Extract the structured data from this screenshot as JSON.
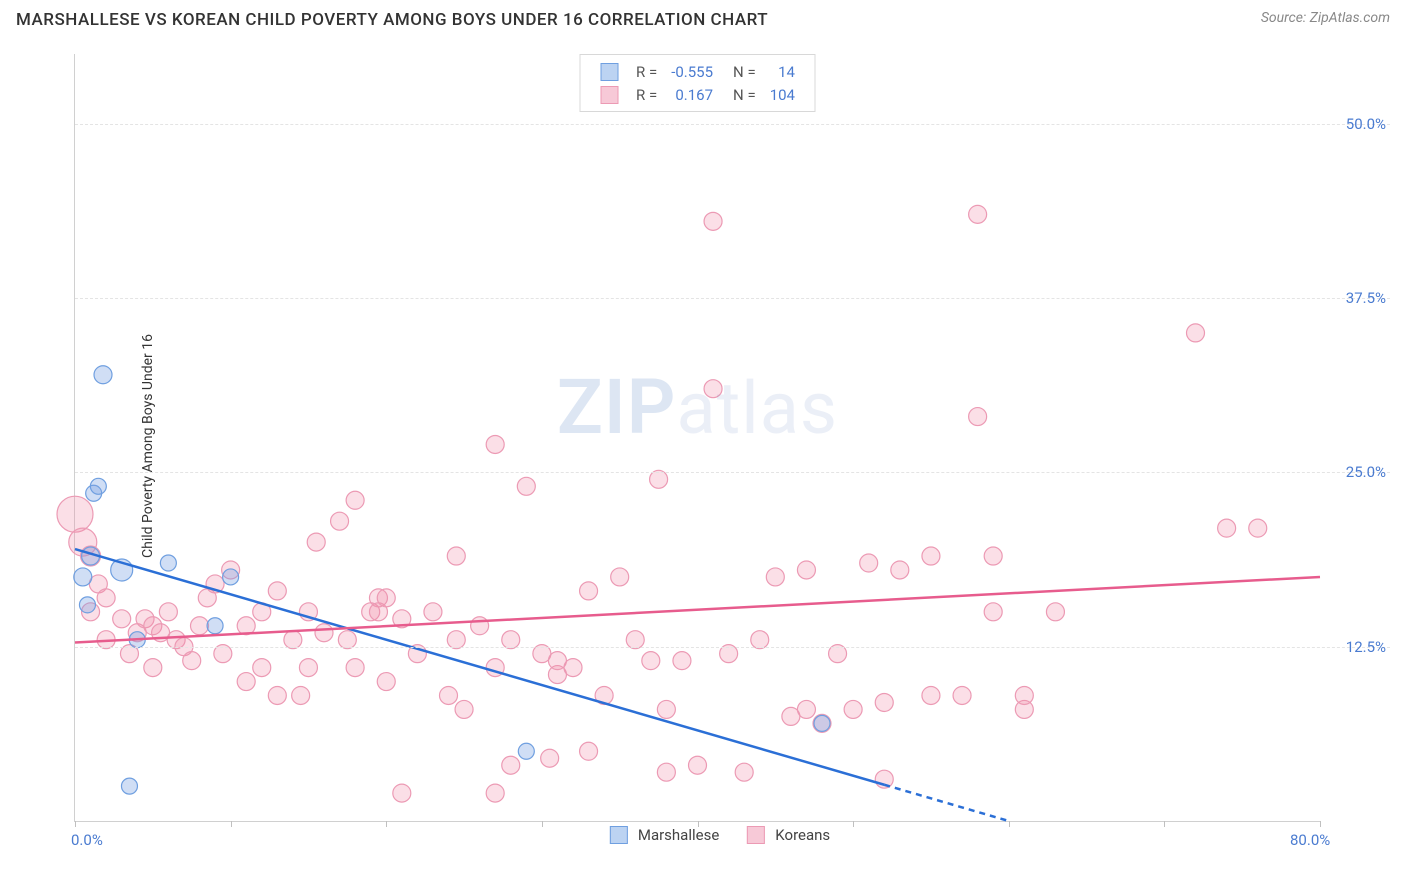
{
  "title": "MARSHALLESE VS KOREAN CHILD POVERTY AMONG BOYS UNDER 16 CORRELATION CHART",
  "source_label": "Source:",
  "source_name": "ZipAtlas.com",
  "ylabel": "Child Poverty Among Boys Under 16",
  "watermark_a": "ZIP",
  "watermark_b": "atlas",
  "chart": {
    "type": "scatter",
    "background_color": "#ffffff",
    "grid_color": "#e4e4e4",
    "axis_color": "#d0d0d0",
    "tick_color": "#c0c0c0",
    "axis_label_color": "#4a7bd0",
    "xlim": [
      0,
      80
    ],
    "ylim": [
      0,
      55
    ],
    "x_tick_positions": [
      0,
      10,
      20,
      30,
      40,
      50,
      60,
      70,
      80
    ],
    "x_tick_labels": {
      "0": "0.0%",
      "80": "80.0%"
    },
    "y_gridlines": [
      12.5,
      25,
      37.5,
      50
    ],
    "y_tick_labels": {
      "12.5": "12.5%",
      "25": "25.0%",
      "37.5": "37.5%",
      "50": "50.0%"
    },
    "series": [
      {
        "name": "Marshallese",
        "label": "Marshallese",
        "fill": "rgba(120,160,225,0.35)",
        "stroke": "#6f9fe0",
        "swatch_fill": "#bcd3f2",
        "swatch_border": "#6f9fe0",
        "r_value": "-0.555",
        "n_value": "14",
        "trend": {
          "x1": 0,
          "y1": 19.5,
          "x2": 60,
          "y2": 0,
          "dash_after_x": 52,
          "color": "#2b6fd6",
          "width": 2.5
        },
        "points": [
          {
            "x": 0.5,
            "y": 17.5,
            "r": 9
          },
          {
            "x": 1.0,
            "y": 19,
            "r": 9
          },
          {
            "x": 1.2,
            "y": 23.5,
            "r": 8
          },
          {
            "x": 1.5,
            "y": 24,
            "r": 8
          },
          {
            "x": 1.8,
            "y": 32,
            "r": 9
          },
          {
            "x": 3,
            "y": 18,
            "r": 11
          },
          {
            "x": 3.5,
            "y": 2.5,
            "r": 8
          },
          {
            "x": 4,
            "y": 13,
            "r": 8
          },
          {
            "x": 6,
            "y": 18.5,
            "r": 8
          },
          {
            "x": 9,
            "y": 14,
            "r": 8
          },
          {
            "x": 10,
            "y": 17.5,
            "r": 8
          },
          {
            "x": 29,
            "y": 5,
            "r": 8
          },
          {
            "x": 0.8,
            "y": 15.5,
            "r": 8
          },
          {
            "x": 48,
            "y": 7,
            "r": 8
          }
        ]
      },
      {
        "name": "Koreans",
        "label": "Koreans",
        "fill": "rgba(240,140,170,0.28)",
        "stroke": "#ec9ab4",
        "swatch_fill": "#f7c9d7",
        "swatch_border": "#ec9ab4",
        "r_value": "0.167",
        "n_value": "104",
        "trend": {
          "x1": 0,
          "y1": 12.8,
          "x2": 80,
          "y2": 17.5,
          "color": "#e75c8d",
          "width": 2.5
        },
        "points": [
          {
            "x": 0,
            "y": 22,
            "r": 18
          },
          {
            "x": 0.5,
            "y": 20,
            "r": 14
          },
          {
            "x": 1,
            "y": 19,
            "r": 10
          },
          {
            "x": 1,
            "y": 15,
            "r": 9
          },
          {
            "x": 1.5,
            "y": 17,
            "r": 9
          },
          {
            "x": 2,
            "y": 13,
            "r": 9
          },
          {
            "x": 2,
            "y": 16,
            "r": 9
          },
          {
            "x": 3,
            "y": 14.5,
            "r": 9
          },
          {
            "x": 3.5,
            "y": 12,
            "r": 9
          },
          {
            "x": 4,
            "y": 13.5,
            "r": 9
          },
          {
            "x": 4.5,
            "y": 14.5,
            "r": 9
          },
          {
            "x": 5,
            "y": 11,
            "r": 9
          },
          {
            "x": 5,
            "y": 14,
            "r": 9
          },
          {
            "x": 5.5,
            "y": 13.5,
            "r": 9
          },
          {
            "x": 6,
            "y": 15,
            "r": 9
          },
          {
            "x": 6.5,
            "y": 13,
            "r": 9
          },
          {
            "x": 7,
            "y": 12.5,
            "r": 9
          },
          {
            "x": 7.5,
            "y": 11.5,
            "r": 9
          },
          {
            "x": 8,
            "y": 14,
            "r": 9
          },
          {
            "x": 8.5,
            "y": 16,
            "r": 9
          },
          {
            "x": 9,
            "y": 17,
            "r": 9
          },
          {
            "x": 9.5,
            "y": 12,
            "r": 9
          },
          {
            "x": 10,
            "y": 18,
            "r": 9
          },
          {
            "x": 11,
            "y": 14,
            "r": 9
          },
          {
            "x": 11,
            "y": 10,
            "r": 9
          },
          {
            "x": 12,
            "y": 11,
            "r": 9
          },
          {
            "x": 12,
            "y": 15,
            "r": 9
          },
          {
            "x": 13,
            "y": 9,
            "r": 9
          },
          {
            "x": 13,
            "y": 16.5,
            "r": 9
          },
          {
            "x": 14,
            "y": 13,
            "r": 9
          },
          {
            "x": 14.5,
            "y": 9,
            "r": 9
          },
          {
            "x": 15,
            "y": 11,
            "r": 9
          },
          {
            "x": 15,
            "y": 15,
            "r": 9
          },
          {
            "x": 15.5,
            "y": 20,
            "r": 9
          },
          {
            "x": 16,
            "y": 13.5,
            "r": 9
          },
          {
            "x": 17,
            "y": 21.5,
            "r": 9
          },
          {
            "x": 17.5,
            "y": 13,
            "r": 9
          },
          {
            "x": 18,
            "y": 11,
            "r": 9
          },
          {
            "x": 18,
            "y": 23,
            "r": 9
          },
          {
            "x": 19,
            "y": 15,
            "r": 9
          },
          {
            "x": 19.5,
            "y": 16,
            "r": 9
          },
          {
            "x": 19.5,
            "y": 15,
            "r": 9
          },
          {
            "x": 20,
            "y": 10,
            "r": 9
          },
          {
            "x": 20,
            "y": 16,
            "r": 9
          },
          {
            "x": 21,
            "y": 14.5,
            "r": 9
          },
          {
            "x": 21,
            "y": 2,
            "r": 9
          },
          {
            "x": 22,
            "y": 12,
            "r": 9
          },
          {
            "x": 23,
            "y": 15,
            "r": 9
          },
          {
            "x": 24,
            "y": 9,
            "r": 9
          },
          {
            "x": 24.5,
            "y": 13,
            "r": 9
          },
          {
            "x": 24.5,
            "y": 19,
            "r": 9
          },
          {
            "x": 25,
            "y": 8,
            "r": 9
          },
          {
            "x": 26,
            "y": 14,
            "r": 9
          },
          {
            "x": 27,
            "y": 11,
            "r": 9
          },
          {
            "x": 27,
            "y": 2,
            "r": 9
          },
          {
            "x": 27,
            "y": 27,
            "r": 9
          },
          {
            "x": 28,
            "y": 4,
            "r": 9
          },
          {
            "x": 28,
            "y": 13,
            "r": 9
          },
          {
            "x": 29,
            "y": 24,
            "r": 9
          },
          {
            "x": 30,
            "y": 12,
            "r": 9
          },
          {
            "x": 30.5,
            "y": 4.5,
            "r": 9
          },
          {
            "x": 31,
            "y": 10.5,
            "r": 9
          },
          {
            "x": 31,
            "y": 11.5,
            "r": 9
          },
          {
            "x": 32,
            "y": 11,
            "r": 9
          },
          {
            "x": 33,
            "y": 16.5,
            "r": 9
          },
          {
            "x": 33,
            "y": 5,
            "r": 9
          },
          {
            "x": 34,
            "y": 9,
            "r": 9
          },
          {
            "x": 35,
            "y": 17.5,
            "r": 9
          },
          {
            "x": 36,
            "y": 13,
            "r": 9
          },
          {
            "x": 37,
            "y": 11.5,
            "r": 9
          },
          {
            "x": 37.5,
            "y": 24.5,
            "r": 9
          },
          {
            "x": 38,
            "y": 8,
            "r": 9
          },
          {
            "x": 38,
            "y": 3.5,
            "r": 9
          },
          {
            "x": 39,
            "y": 11.5,
            "r": 9
          },
          {
            "x": 40,
            "y": 4,
            "r": 9
          },
          {
            "x": 41,
            "y": 43,
            "r": 9
          },
          {
            "x": 41,
            "y": 31,
            "r": 9
          },
          {
            "x": 42,
            "y": 12,
            "r": 9
          },
          {
            "x": 43,
            "y": 3.5,
            "r": 9
          },
          {
            "x": 44,
            "y": 13,
            "r": 9
          },
          {
            "x": 45,
            "y": 17.5,
            "r": 9
          },
          {
            "x": 46,
            "y": 7.5,
            "r": 9
          },
          {
            "x": 47,
            "y": 18,
            "r": 9
          },
          {
            "x": 47,
            "y": 8,
            "r": 9
          },
          {
            "x": 48,
            "y": 7,
            "r": 9
          },
          {
            "x": 49,
            "y": 12,
            "r": 9
          },
          {
            "x": 50,
            "y": 8,
            "r": 9
          },
          {
            "x": 51,
            "y": 18.5,
            "r": 9
          },
          {
            "x": 52,
            "y": 3,
            "r": 9
          },
          {
            "x": 52,
            "y": 8.5,
            "r": 9
          },
          {
            "x": 53,
            "y": 18,
            "r": 9
          },
          {
            "x": 55,
            "y": 19,
            "r": 9
          },
          {
            "x": 55,
            "y": 9,
            "r": 9
          },
          {
            "x": 57,
            "y": 9,
            "r": 9
          },
          {
            "x": 58,
            "y": 43.5,
            "r": 9
          },
          {
            "x": 58,
            "y": 29,
            "r": 9
          },
          {
            "x": 59,
            "y": 15,
            "r": 9
          },
          {
            "x": 59,
            "y": 19,
            "r": 9
          },
          {
            "x": 61,
            "y": 8,
            "r": 9
          },
          {
            "x": 61,
            "y": 9,
            "r": 9
          },
          {
            "x": 63,
            "y": 15,
            "r": 9
          },
          {
            "x": 72,
            "y": 35,
            "r": 9
          },
          {
            "x": 74,
            "y": 21,
            "r": 9
          },
          {
            "x": 76,
            "y": 21,
            "r": 9
          }
        ]
      }
    ],
    "legend_top": {
      "r_label": "R =",
      "n_label": "N ="
    },
    "legend_bottom": [
      {
        "label": "Marshallese",
        "swatch_fill": "#bcd3f2",
        "swatch_border": "#6f9fe0"
      },
      {
        "label": "Koreans",
        "swatch_fill": "#f7c9d7",
        "swatch_border": "#ec9ab4"
      }
    ]
  }
}
